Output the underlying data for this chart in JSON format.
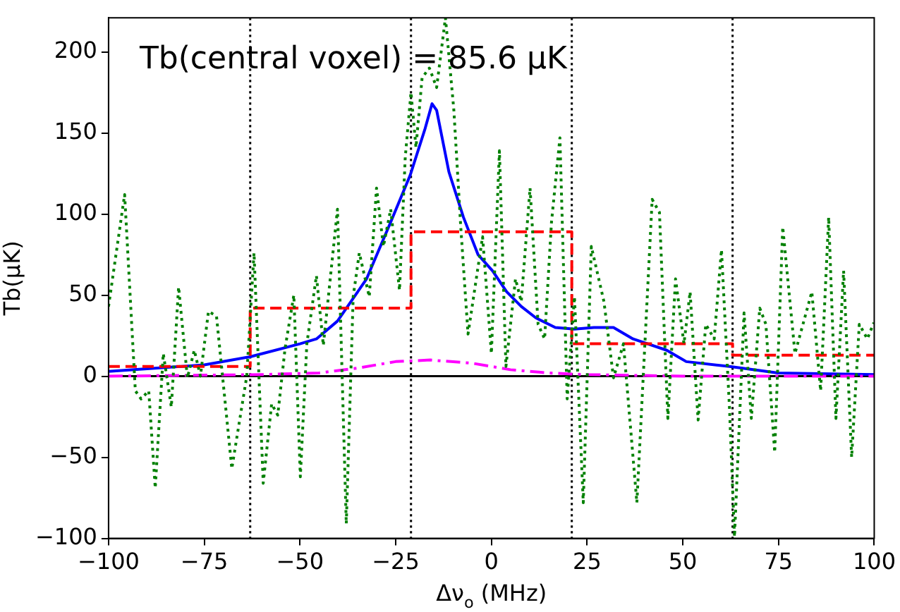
{
  "chart_data": {
    "type": "line",
    "xlabel": "Δν$_{o}$ (MHz)",
    "ylabel": "Tb(μK)",
    "annotations": [
      "Tb(central voxel) = 85.6 μK"
    ],
    "xlim": [
      -100,
      100
    ],
    "xticks": [
      -100,
      -75,
      -50,
      -25,
      0,
      25,
      50,
      75,
      100
    ],
    "ylim": [
      -100,
      221
    ],
    "yticks": [
      -100,
      -50,
      0,
      50,
      100,
      150,
      200
    ],
    "grid": false,
    "legend": false,
    "marker": "none",
    "series": [
      {
        "color": "#008000",
        "line_style": "dotted",
        "x": [
          -100,
          -95.8,
          -93,
          -91.5,
          -89.5,
          -87.8,
          -85.7,
          -83.6,
          -81.7,
          -79.4,
          -77.6,
          -76,
          -73.9,
          -71.8,
          -67.8,
          -63.9,
          -62,
          -59.6,
          -57.4,
          -55.8,
          -53.9,
          -51.6,
          -49.9,
          -48.2,
          -45.7,
          -43.9,
          -40.2,
          -37.9,
          -36.1,
          -34.5,
          -31.9,
          -30,
          -28.2,
          -26.3,
          -24,
          -22.5,
          -21,
          -19.7,
          -18.1,
          -16.2,
          -14.3,
          -12,
          -9.8,
          -8,
          -6.1,
          -2.3,
          0,
          2.1,
          3.8,
          6.3,
          7.8,
          10.1,
          12.2,
          13.9,
          15.7,
          17.9,
          19.8,
          21.7,
          24,
          26.1,
          29.4,
          31.9,
          34.5,
          38,
          42,
          43.9,
          46.1,
          48.1,
          50.3,
          51.9,
          54,
          56,
          58.2,
          60.1,
          62.2,
          63.5,
          66,
          67.9,
          70.1,
          71.7,
          74,
          76.1,
          79.3,
          83.7,
          86,
          88.1,
          90,
          92,
          94.1,
          96.1,
          98.2,
          99.9
        ],
        "values": [
          43,
          112,
          -9,
          -14,
          -9,
          -69,
          14,
          -19,
          55,
          -1,
          16,
          0,
          40,
          37,
          -57,
          0,
          76,
          -66,
          -17,
          -24,
          17,
          50,
          -62,
          20,
          62,
          19,
          103,
          -91,
          49,
          76,
          49,
          116,
          80,
          103,
          53,
          135,
          175,
          141,
          184,
          190,
          178,
          221,
          164,
          92,
          26,
          86,
          14,
          139,
          6,
          60,
          46,
          116,
          32,
          23,
          95,
          147,
          -14,
          49,
          -78,
          80,
          46,
          -1,
          20,
          -78,
          109,
          101,
          -26,
          60,
          20,
          52,
          -27,
          32,
          23,
          78,
          -20,
          -99,
          39,
          -26,
          42,
          32,
          -47,
          92,
          14,
          52,
          -9,
          98,
          -26,
          65,
          -50,
          32,
          23,
          33
        ]
      },
      {
        "type": "step",
        "color": "#ff0000",
        "line_style": "dashed",
        "x": [
          -100,
          -63,
          -21,
          21,
          63,
          100
        ],
        "values": [
          6,
          42,
          89,
          20,
          13,
          13
        ]
      },
      {
        "color": "#ff00ff",
        "line_style": "dashdot",
        "x": [
          -100,
          -60,
          -45,
          -35,
          -25,
          -16,
          -5,
          5,
          15,
          25,
          50,
          100
        ],
        "values": [
          0,
          1,
          2,
          5,
          9,
          10,
          8,
          4,
          2,
          1,
          0,
          0
        ]
      },
      {
        "color": "#0000ff",
        "line_style": "solid",
        "x": [
          -100,
          -75,
          -63,
          -50,
          -45.7,
          -40.2,
          -32.6,
          -26.3,
          -21.2,
          -17.4,
          -15.5,
          -14.3,
          -11.1,
          -7.3,
          -3.5,
          0.3,
          4,
          7.8,
          11.6,
          16.7,
          21.7,
          26.8,
          31.9,
          37,
          45.8,
          50.9,
          62.2,
          74.9,
          100
        ],
        "values": [
          3,
          7,
          12,
          20,
          23,
          34,
          60,
          95,
          124,
          152,
          168,
          164,
          126,
          98,
          75,
          65,
          52,
          43,
          36,
          30,
          29,
          30,
          30,
          23,
          16,
          9,
          6,
          2,
          1
        ]
      }
    ],
    "ref_lines": [
      {
        "axis": "y",
        "value": 0,
        "color": "#000000",
        "line_style": "solid"
      },
      {
        "axis": "x",
        "value": -63,
        "color": "#000000",
        "line_style": "dotted"
      },
      {
        "axis": "x",
        "value": -21,
        "color": "#000000",
        "line_style": "dotted"
      },
      {
        "axis": "x",
        "value": 21,
        "color": "#000000",
        "line_style": "dotted"
      },
      {
        "axis": "x",
        "value": 63,
        "color": "#000000",
        "line_style": "dotted"
      }
    ]
  }
}
